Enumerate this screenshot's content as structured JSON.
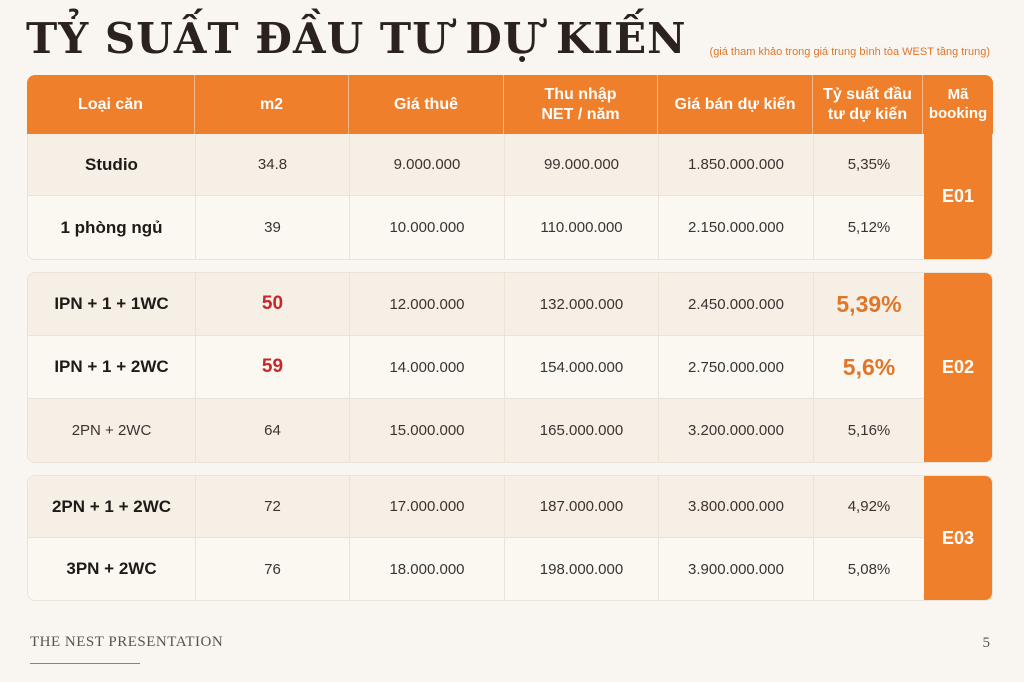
{
  "title": "TỶ SUẤT ĐẦU TƯ DỰ KIẾN",
  "note": "(giá tham khảo trong giá trung bình tòa WEST tầng trung)",
  "headers": {
    "type": "Loại căn",
    "area": "m2",
    "rent": "Giá thuê",
    "income": "Thu nhập NET / năm",
    "price": "Giá bán dự kiến",
    "yield": "Tỷ suất đầu tư dự kiến",
    "booking": "Mã booking"
  },
  "groups": [
    {
      "booking": "E01",
      "rows": [
        {
          "type": "Studio",
          "area": "34.8",
          "rent": "9.000.000",
          "income": "99.000.000",
          "price": "1.850.000.000",
          "yield": "5,35%"
        },
        {
          "type": "1 phòng ngủ",
          "area": "39",
          "rent": "10.000.000",
          "income": "110.000.000",
          "price": "2.150.000.000",
          "yield": "5,12%"
        }
      ]
    },
    {
      "booking": "E02",
      "rows": [
        {
          "type": "IPN + 1 + 1WC",
          "area": "50",
          "rent": "12.000.000",
          "income": "132.000.000",
          "price": "2.450.000.000",
          "yield": "5,39%"
        },
        {
          "type": "IPN + 1 + 2WC",
          "area": "59",
          "rent": "14.000.000",
          "income": "154.000.000",
          "price": "2.750.000.000",
          "yield": "5,6%"
        },
        {
          "type": "2PN + 2WC",
          "area": "64",
          "rent": "15.000.000",
          "income": "165.000.000",
          "price": "3.200.000.000",
          "yield": "5,16%"
        }
      ]
    },
    {
      "booking": "E03",
      "rows": [
        {
          "type": "2PN + 1 + 2WC",
          "area": "72",
          "rent": "17.000.000",
          "income": "187.000.000",
          "price": "3.800.000.000",
          "yield": "4,92%"
        },
        {
          "type": "3PN + 2WC",
          "area": "76",
          "rent": "18.000.000",
          "income": "198.000.000",
          "price": "3.900.000.000",
          "yield": "5,08%"
        }
      ]
    }
  ],
  "footer": "THE NEST PRESENTATION",
  "page_number": "5",
  "colors": {
    "accent": "#ef7f2a",
    "highlight_red": "#c9262b",
    "background": "#f9f6f1"
  }
}
